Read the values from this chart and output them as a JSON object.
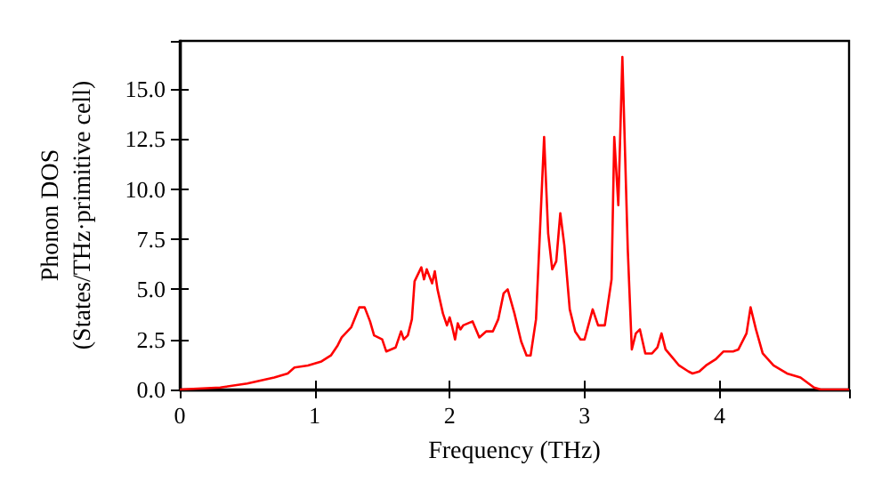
{
  "chart_data": {
    "type": "line",
    "xlabel": "Frequency (THz)",
    "ylabel": "Phonon DOS\n(States/THz·primitive cell)",
    "xlim": [
      0,
      4.96
    ],
    "ylim": [
      0,
      17.4
    ],
    "xticks": [
      0,
      1,
      2,
      3,
      4
    ],
    "yticks": [
      {
        "value": 0,
        "label": "0.0"
      },
      {
        "value": 2.5,
        "label": "2.5"
      },
      {
        "value": 5,
        "label": "5.0"
      },
      {
        "value": 7.5,
        "label": "7.5"
      },
      {
        "value": 10,
        "label": "10.0"
      },
      {
        "value": 12.5,
        "label": "12.5"
      },
      {
        "value": 15,
        "label": "15.0"
      }
    ],
    "grid": false,
    "marker": "none",
    "line_style": "solid",
    "series": [
      {
        "color": "#ff0000",
        "x": [
          0,
          0.3,
          0.5,
          0.7,
          0.8,
          0.85,
          0.95,
          1.05,
          1.12,
          1.17,
          1.2,
          1.27,
          1.3,
          1.33,
          1.37,
          1.41,
          1.44,
          1.5,
          1.53,
          1.6,
          1.64,
          1.66,
          1.69,
          1.72,
          1.74,
          1.79,
          1.81,
          1.83,
          1.87,
          1.89,
          1.91,
          1.95,
          1.98,
          2.0,
          2.02,
          2.04,
          2.06,
          2.08,
          2.1,
          2.17,
          2.22,
          2.27,
          2.32,
          2.36,
          2.4,
          2.43,
          2.48,
          2.53,
          2.57,
          2.6,
          2.64,
          2.67,
          2.7,
          2.73,
          2.76,
          2.79,
          2.82,
          2.85,
          2.89,
          2.93,
          2.97,
          3.0,
          3.04,
          3.06,
          3.1,
          3.15,
          3.2,
          3.22,
          3.25,
          3.28,
          3.32,
          3.35,
          3.38,
          3.41,
          3.45,
          3.5,
          3.54,
          3.57,
          3.6,
          3.65,
          3.7,
          3.77,
          3.8,
          3.85,
          3.9,
          3.97,
          4.03,
          4.1,
          4.14,
          4.2,
          4.23,
          4.27,
          4.32,
          4.4,
          4.5,
          4.6,
          4.66,
          4.7,
          4.75,
          4.96
        ],
        "values": [
          0,
          0.1,
          0.3,
          0.6,
          0.8,
          1.1,
          1.2,
          1.4,
          1.7,
          2.2,
          2.6,
          3.1,
          3.6,
          4.1,
          4.1,
          3.4,
          2.7,
          2.5,
          1.9,
          2.1,
          2.9,
          2.5,
          2.7,
          3.5,
          5.4,
          6.1,
          5.5,
          6.0,
          5.3,
          5.9,
          5.0,
          3.8,
          3.2,
          3.6,
          3.1,
          2.5,
          3.3,
          3.0,
          3.2,
          3.4,
          2.6,
          2.9,
          2.9,
          3.5,
          4.8,
          5.0,
          3.8,
          2.4,
          1.7,
          1.7,
          3.5,
          8.0,
          12.6,
          7.8,
          6.0,
          6.4,
          8.8,
          7.2,
          4.0,
          2.9,
          2.5,
          2.5,
          3.5,
          4.0,
          3.2,
          3.2,
          5.5,
          12.6,
          9.2,
          16.6,
          7.0,
          2.0,
          2.8,
          3.0,
          1.8,
          1.8,
          2.1,
          2.8,
          2.0,
          1.6,
          1.2,
          0.9,
          0.8,
          0.9,
          1.2,
          1.5,
          1.9,
          1.9,
          2.0,
          2.8,
          4.1,
          3.0,
          1.8,
          1.2,
          0.8,
          0.6,
          0.3,
          0.1,
          0,
          0
        ]
      }
    ]
  }
}
